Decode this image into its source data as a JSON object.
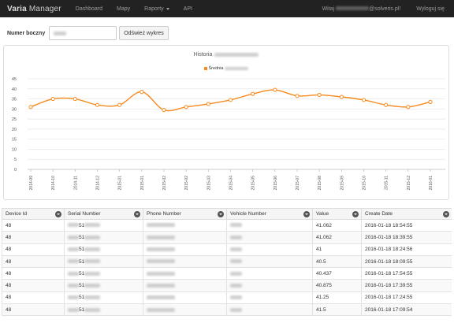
{
  "navbar": {
    "brand_bold": "Varia",
    "brand_rest": "Manager",
    "items": [
      "Dashboard",
      "Mapy",
      "Raporty",
      "API"
    ],
    "welcome_prefix": "Witaj",
    "welcome_suffix": "@solveris.pl!",
    "logout": "Wyloguj się"
  },
  "toolbar": {
    "label": "Numer boczny",
    "input_value": "",
    "refresh_button": "Odśwież wykres"
  },
  "chart": {
    "title": "Historia",
    "legend_label": "Średnia"
  },
  "chart_data": {
    "type": "line",
    "categories": [
      "2014-09",
      "2014-10",
      "2014-11",
      "2014-12",
      "2015-01",
      "2015-01",
      "2015-02",
      "2015-02",
      "2015-03",
      "2015-04",
      "2015-05",
      "2015-06",
      "2015-07",
      "2015-08",
      "2015-09",
      "2015-10",
      "2015-11",
      "2015-12",
      "2016-01"
    ],
    "series": [
      {
        "name": "Średnia",
        "values": [
          31,
          35,
          35,
          32,
          32,
          38.5,
          29.5,
          31,
          32.5,
          34.5,
          37.5,
          39.5,
          36.5,
          37,
          36,
          34.5,
          32,
          31,
          33.5
        ]
      }
    ],
    "ylim": [
      0,
      45
    ],
    "yticks": [
      0,
      5,
      10,
      15,
      20,
      25,
      30,
      35,
      40,
      45
    ],
    "grid": true,
    "line_color": "#f7891d"
  },
  "table": {
    "headers": [
      "Device Id",
      "Serial Number",
      "Phone Number",
      "Vehicle Number",
      "Value",
      "Create Date"
    ],
    "serial_visible": "51",
    "rows": [
      {
        "device": "48",
        "value": "41.062",
        "date": "2016-01-18 18:54:55"
      },
      {
        "device": "48",
        "value": "41.062",
        "date": "2016-01-18 18:39:55"
      },
      {
        "device": "48",
        "value": "41",
        "date": "2016-01-18 18:24:56"
      },
      {
        "device": "48",
        "value": "40.5",
        "date": "2016-01-18 18:09:55"
      },
      {
        "device": "48",
        "value": "40.437",
        "date": "2016-01-18 17:54:55"
      },
      {
        "device": "48",
        "value": "40.875",
        "date": "2016-01-18 17:39:55"
      },
      {
        "device": "48",
        "value": "41.25",
        "date": "2016-01-18 17:24:55"
      },
      {
        "device": "48",
        "value": "41.5",
        "date": "2016-01-18 17:09:54"
      }
    ]
  }
}
